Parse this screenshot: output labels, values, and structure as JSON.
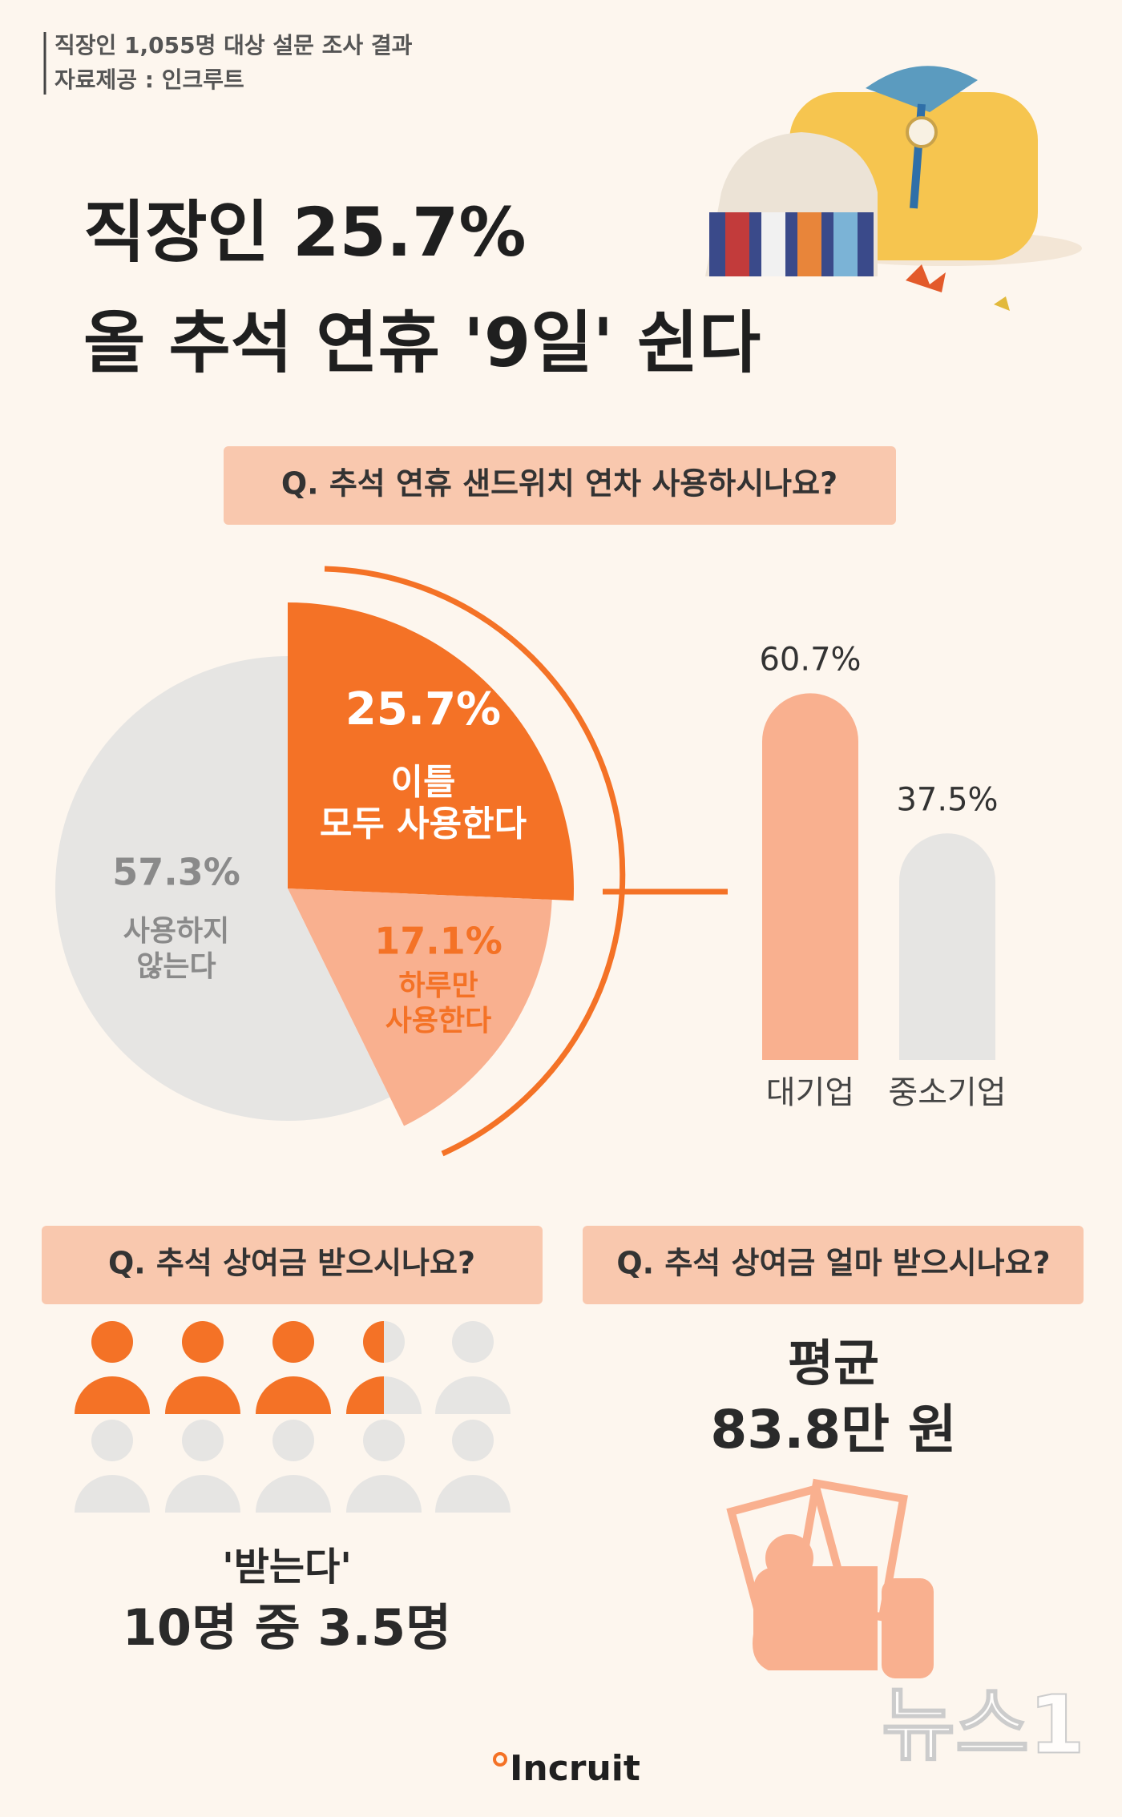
{
  "header": {
    "lines": [
      "직장인 1,055명 대상 설문 조사 결과",
      "자료제공 : 인크루트"
    ],
    "title_lines": [
      "직장인 25.7%",
      "올 추석 연휴 '9일' 쉰다"
    ]
  },
  "chart_data": [
    {
      "type": "pie",
      "title": "Q. 추석 연휴 샌드위치 연차 사용하시나요?",
      "categories": [
        "이틀\n모두 사용한다",
        "하루만\n사용한다",
        "사용하지\n않는다"
      ],
      "values": [
        25.7,
        17.1,
        57.3
      ],
      "value_labels": [
        "25.7%",
        "17.1%",
        "57.3%"
      ],
      "colors": [
        "#f47226",
        "#f9b08f",
        "#e6e5e3"
      ]
    },
    {
      "type": "bar",
      "categories": [
        "대기업",
        "중소기업"
      ],
      "values": [
        60.7,
        37.5
      ],
      "value_labels": [
        "60.7%",
        "37.5%"
      ],
      "colors": [
        "#f9b08f",
        "#e6e5e3"
      ]
    },
    {
      "type": "pictogram",
      "title": "Q. 추석 상여금 받으시나요?",
      "subtitle": "'받는다'",
      "values": [
        3.5
      ],
      "value_labels": [
        "10명 중 3.5명"
      ],
      "color": "#f47226"
    }
  ],
  "amount": {
    "question": "Q. 추석 상여금 얼마 받으시나요?",
    "lines": [
      "평균",
      "83.8만 원"
    ]
  },
  "footer": {
    "logo": "Incruit",
    "watermark": "뉴스1"
  }
}
